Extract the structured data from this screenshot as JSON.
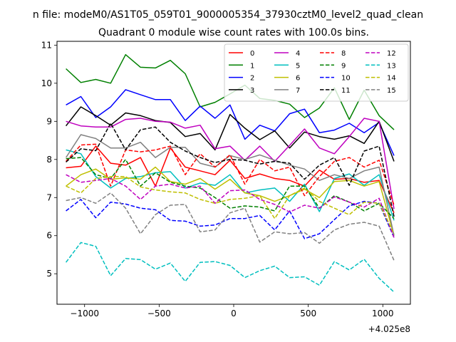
{
  "figure_title": "n file: modeM0/AS1T05_059T01_9000005354_37930cztM0_level2_quad_clean",
  "chart_data": {
    "type": "line",
    "title": "Quadrant 0 module wise count rates with 100.0s bins.",
    "xlabel": "",
    "ylabel": "",
    "offset_label": "+4.025e8",
    "xlim": [
      -1185,
      1185
    ],
    "ylim": [
      4.2,
      11.1
    ],
    "xticks": [
      -1000,
      -500,
      0,
      500,
      1000
    ],
    "xtick_labels": [
      "−1000",
      "−500",
      "0",
      "500",
      "1000"
    ],
    "yticks": [
      5,
      6,
      7,
      8,
      9,
      10,
      11
    ],
    "ytick_labels": [
      "5",
      "6",
      "7",
      "8",
      "9",
      "10",
      "11"
    ],
    "x": [
      -1125,
      -1025,
      -925,
      -825,
      -725,
      -625,
      -525,
      -425,
      -325,
      -225,
      -125,
      -25,
      75,
      175,
      275,
      375,
      475,
      575,
      675,
      775,
      875,
      975,
      1075
    ],
    "legend": {
      "placement": "top-right",
      "columns": 4
    },
    "series": [
      {
        "name": "0",
        "color": "#ff0000",
        "dash": "solid",
        "values": [
          7.78,
          7.82,
          8.35,
          7.9,
          7.85,
          8.05,
          7.3,
          8.3,
          7.8,
          7.7,
          7.6,
          7.98,
          7.5,
          7.62,
          7.5,
          7.45,
          7.3,
          7.72,
          7.48,
          7.5,
          7.4,
          7.45,
          6.6
        ]
      },
      {
        "name": "1",
        "color": "#008000",
        "dash": "solid",
        "values": [
          10.38,
          10.02,
          10.1,
          10.0,
          10.75,
          10.42,
          10.4,
          10.6,
          10.25,
          9.38,
          9.5,
          9.72,
          9.95,
          9.6,
          9.55,
          9.45,
          9.1,
          9.35,
          9.88,
          9.05,
          9.82,
          9.15,
          8.78
        ]
      },
      {
        "name": "2",
        "color": "#0000ff",
        "dash": "solid",
        "values": [
          9.43,
          9.65,
          9.1,
          9.38,
          9.83,
          9.7,
          9.57,
          9.57,
          9.02,
          9.4,
          9.08,
          9.43,
          8.53,
          8.9,
          8.75,
          9.2,
          9.32,
          8.7,
          8.77,
          8.95,
          8.7,
          8.97,
          8.1
        ]
      },
      {
        "name": "3",
        "color": "#000000",
        "dash": "solid",
        "values": [
          8.88,
          9.38,
          9.15,
          8.9,
          9.22,
          9.15,
          9.02,
          8.97,
          8.6,
          8.68,
          8.25,
          9.18,
          8.82,
          8.52,
          8.75,
          8.3,
          8.72,
          8.6,
          8.53,
          8.62,
          8.42,
          9.0,
          7.95
        ]
      },
      {
        "name": "4",
        "color": "#bf00bf",
        "dash": "solid",
        "values": [
          9.0,
          8.88,
          8.85,
          8.85,
          9.05,
          9.08,
          9.0,
          8.98,
          8.82,
          8.9,
          8.28,
          8.35,
          7.98,
          8.35,
          7.95,
          8.37,
          8.8,
          8.3,
          8.15,
          8.6,
          9.08,
          9.0,
          6.7
        ]
      },
      {
        "name": "5",
        "color": "#00bfbf",
        "dash": "solid",
        "values": [
          8.25,
          8.15,
          7.55,
          7.25,
          7.5,
          7.55,
          7.65,
          7.68,
          7.25,
          7.38,
          7.32,
          7.6,
          7.12,
          7.2,
          7.25,
          6.9,
          7.35,
          6.63,
          7.5,
          7.62,
          7.32,
          7.6,
          6.4
        ]
      },
      {
        "name": "6",
        "color": "#bfbf00",
        "dash": "solid",
        "values": [
          7.3,
          7.6,
          7.75,
          7.48,
          7.52,
          7.48,
          7.8,
          7.42,
          7.35,
          7.5,
          7.22,
          7.48,
          7.12,
          7.05,
          6.9,
          7.05,
          7.22,
          7.0,
          7.42,
          7.45,
          7.3,
          7.42,
          6.0
        ]
      },
      {
        "name": "7",
        "color": "#808080",
        "dash": "solid",
        "values": [
          8.05,
          8.65,
          8.55,
          8.3,
          8.3,
          8.45,
          8.05,
          8.32,
          8.32,
          7.9,
          7.8,
          8.1,
          8.0,
          8.12,
          7.98,
          7.85,
          7.75,
          7.45,
          7.6,
          7.5,
          7.7,
          7.8,
          6.0
        ]
      },
      {
        "name": "8",
        "color": "#ff0000",
        "dash": "dashed",
        "values": [
          7.95,
          8.38,
          8.4,
          7.3,
          8.25,
          8.2,
          8.25,
          8.35,
          7.6,
          8.15,
          7.8,
          8.12,
          7.35,
          8.0,
          7.7,
          7.8,
          7.05,
          7.55,
          7.95,
          8.05,
          7.8,
          7.98,
          6.8
        ]
      },
      {
        "name": "9",
        "color": "#008000",
        "dash": "dashed",
        "values": [
          8.02,
          8.05,
          7.6,
          7.5,
          8.0,
          7.3,
          7.65,
          7.4,
          7.3,
          7.25,
          7.0,
          6.72,
          6.78,
          6.75,
          6.65,
          7.3,
          7.3,
          6.72,
          7.05,
          6.88,
          6.65,
          6.85,
          6.45
        ]
      },
      {
        "name": "10",
        "color": "#0000ff",
        "dash": "dashed",
        "values": [
          6.65,
          6.95,
          6.47,
          6.88,
          6.83,
          6.72,
          6.68,
          6.4,
          6.38,
          6.25,
          6.28,
          6.45,
          6.45,
          6.53,
          6.15,
          6.65,
          5.92,
          6.05,
          6.42,
          6.78,
          6.9,
          6.85,
          5.95
        ]
      },
      {
        "name": "11",
        "color": "#000000",
        "dash": "dashed",
        "values": [
          7.93,
          8.28,
          8.23,
          8.95,
          8.25,
          8.78,
          8.85,
          8.45,
          8.22,
          8.05,
          7.92,
          8.0,
          7.98,
          7.88,
          7.95,
          7.9,
          7.48,
          7.85,
          8.05,
          7.32,
          8.22,
          8.35,
          6.5
        ]
      },
      {
        "name": "12",
        "color": "#bf00bf",
        "dash": "dashed",
        "values": [
          7.6,
          7.4,
          7.45,
          7.5,
          7.3,
          6.95,
          7.3,
          7.35,
          7.25,
          7.3,
          6.85,
          7.18,
          7.2,
          6.95,
          6.82,
          6.62,
          6.8,
          6.72,
          7.02,
          6.88,
          6.75,
          6.98,
          5.95
        ]
      },
      {
        "name": "13",
        "color": "#00bfbf",
        "dash": "dashed",
        "values": [
          5.3,
          5.82,
          5.72,
          4.95,
          5.4,
          5.37,
          5.12,
          5.28,
          4.8,
          5.3,
          5.32,
          5.22,
          4.9,
          5.08,
          5.2,
          4.9,
          4.92,
          4.7,
          5.32,
          5.1,
          5.38,
          4.88,
          4.52
        ]
      },
      {
        "name": "14",
        "color": "#bfbf00",
        "dash": "dashed",
        "values": [
          7.3,
          7.12,
          7.5,
          7.55,
          7.55,
          7.28,
          7.2,
          7.15,
          7.12,
          6.95,
          6.85,
          6.95,
          6.98,
          7.05,
          6.45,
          7.05,
          7.25,
          6.9,
          6.72,
          6.55,
          6.88,
          6.85,
          6.05
        ]
      },
      {
        "name": "15",
        "color": "#808080",
        "dash": "dashed",
        "values": [
          6.92,
          7.0,
          6.85,
          7.12,
          6.72,
          6.05,
          6.55,
          6.8,
          6.82,
          6.1,
          6.15,
          6.6,
          6.72,
          5.83,
          6.1,
          6.05,
          6.08,
          5.8,
          6.15,
          6.3,
          6.35,
          6.25,
          5.35
        ]
      }
    ]
  }
}
